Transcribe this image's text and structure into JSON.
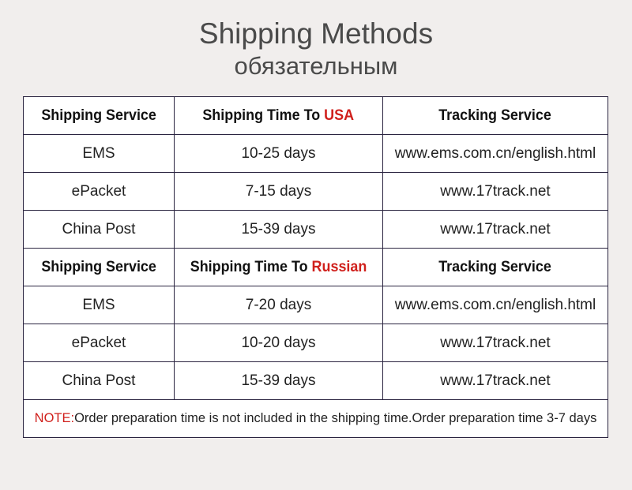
{
  "title": "Shipping Methods",
  "subtitle": "обязательным",
  "colors": {
    "accent": "#d0201c",
    "border": "#2a2440",
    "background": "#f1eeed"
  },
  "sections": [
    {
      "headers": {
        "service": "Shipping Service",
        "time_prefix": "Shipping Time To ",
        "destination": "USA",
        "tracking": "Tracking Service"
      },
      "rows": [
        {
          "service": "EMS",
          "time": "10-25 days",
          "tracking": "www.ems.com.cn/english.html"
        },
        {
          "service": "ePacket",
          "time": "7-15 days",
          "tracking": "www.17track.net"
        },
        {
          "service": "China Post",
          "time": "15-39 days",
          "tracking": "www.17track.net"
        }
      ]
    },
    {
      "headers": {
        "service": "Shipping Service",
        "time_prefix": "Shipping Time To ",
        "destination": "Russian",
        "tracking": "Tracking Service"
      },
      "rows": [
        {
          "service": "EMS",
          "time": "7-20 days",
          "tracking": "www.ems.com.cn/english.html"
        },
        {
          "service": "ePacket",
          "time": "10-20 days",
          "tracking": "www.17track.net"
        },
        {
          "service": "China Post",
          "time": "15-39 days",
          "tracking": "www.17track.net"
        }
      ]
    }
  ],
  "note": {
    "label": "NOTE:",
    "text": "Order preparation time is not included in the shipping time.Order preparation time 3-7 days"
  }
}
